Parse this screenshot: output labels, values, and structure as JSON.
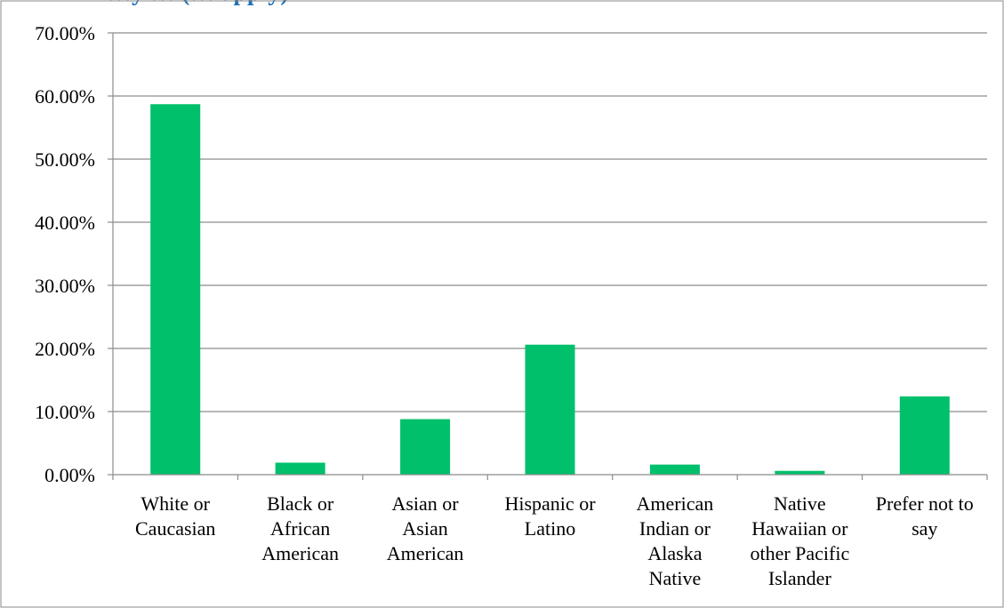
{
  "chart_data": {
    "type": "bar",
    "title": "…y … (… apply)",
    "categories": [
      "White or Caucasian",
      "Black or African American",
      "Asian or Asian American",
      "Hispanic or Latino",
      "American Indian or Alaska Native",
      "Native Hawaiian or other Pacific Islander",
      "Prefer not to say"
    ],
    "category_lines": [
      [
        "White or",
        "Caucasian"
      ],
      [
        "Black or",
        "African",
        "American"
      ],
      [
        "Asian or",
        "Asian",
        "American"
      ],
      [
        "Hispanic or",
        "Latino"
      ],
      [
        "American",
        "Indian or",
        "Alaska",
        "Native"
      ],
      [
        "Native",
        "Hawaiian or",
        "other Pacific",
        "Islander"
      ],
      [
        "Prefer not to",
        "say"
      ]
    ],
    "values": [
      58.7,
      1.9,
      8.8,
      20.6,
      1.6,
      0.6,
      12.4
    ],
    "yticks": [
      "0.00%",
      "10.00%",
      "20.00%",
      "30.00%",
      "40.00%",
      "50.00%",
      "60.00%",
      "70.00%"
    ],
    "ylim": [
      0,
      70
    ],
    "xlabel": "",
    "ylabel": "",
    "grid": true,
    "bar_color": "#00c06b",
    "title_color": "#1f6fb3"
  }
}
